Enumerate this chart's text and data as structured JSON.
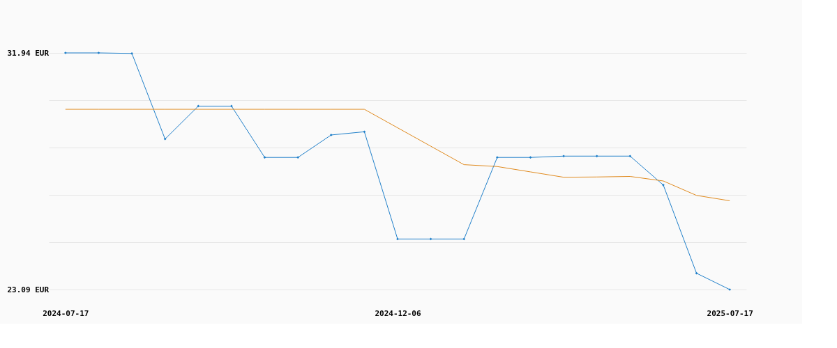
{
  "chart_data": {
    "type": "line",
    "categories": [
      "2024-07-17",
      null,
      null,
      null,
      null,
      null,
      null,
      null,
      null,
      null,
      "2024-12-06",
      null,
      null,
      null,
      null,
      null,
      null,
      null,
      null,
      null,
      "2025-07-17"
    ],
    "series": [
      {
        "color": "#1f7fc9",
        "marker": "diamond",
        "values": [
          31.94,
          31.94,
          31.92,
          28.72,
          29.95,
          29.95,
          28.03,
          28.03,
          28.87,
          28.99,
          24.98,
          24.98,
          24.98,
          28.03,
          28.03,
          28.08,
          28.08,
          28.08,
          27.0,
          23.7,
          23.09
        ]
      },
      {
        "color": "#e08a1e",
        "marker": "none",
        "values": [
          29.83,
          29.83,
          29.83,
          29.83,
          29.83,
          29.83,
          29.83,
          29.83,
          29.83,
          29.83,
          29.14,
          28.45,
          27.76,
          27.69,
          27.49,
          27.29,
          27.3,
          27.32,
          27.15,
          26.61,
          26.41
        ]
      }
    ],
    "ylim": [
      23.09,
      31.94
    ],
    "yticks": [
      {
        "value": 23.09,
        "label": "23.09 EUR"
      },
      {
        "value": 24.86,
        "label": null
      },
      {
        "value": 26.63,
        "label": null
      },
      {
        "value": 28.4,
        "label": null
      },
      {
        "value": 30.17,
        "label": null
      },
      {
        "value": 31.94,
        "label": "31.94 EUR"
      }
    ],
    "grid": "y"
  }
}
